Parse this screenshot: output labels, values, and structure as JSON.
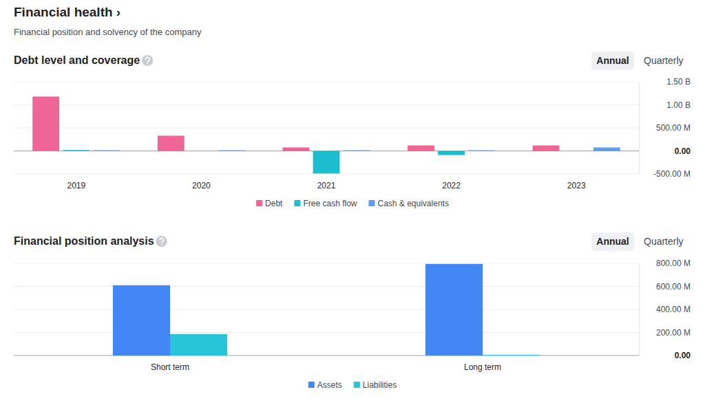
{
  "header": {
    "title": "Financial health ›",
    "subtitle": "Financial position and solvency of the company"
  },
  "controls": [
    [
      "Annual",
      "Quarterly"
    ],
    [
      "Annual",
      "Quarterly"
    ]
  ],
  "chart_data": [
    {
      "type": "bar",
      "title": "Debt level and coverage",
      "categories": [
        "2019",
        "2020",
        "2021",
        "2022",
        "2023"
      ],
      "series": [
        {
          "name": "Debt",
          "color": "#ef6595",
          "values": [
            1180,
            330,
            75,
            120,
            120
          ]
        },
        {
          "name": "Free cash flow",
          "color": "#1bbdcf",
          "values": [
            20,
            null,
            -490,
            -90,
            null
          ]
        },
        {
          "name": "Cash & equivalents",
          "color": "#5e9ef2",
          "values": [
            15,
            15,
            15,
            15,
            75
          ]
        }
      ],
      "ylim": [
        -500,
        1500
      ],
      "yticks": [
        {
          "value": -500,
          "label": "-500.00 M"
        },
        {
          "value": 0,
          "label": "0.00"
        },
        {
          "value": 500,
          "label": "500.00 M"
        },
        {
          "value": 1000,
          "label": "1.00 B"
        },
        {
          "value": 1500,
          "label": "1.50 B"
        }
      ],
      "grid": true,
      "legend": "bottom"
    },
    {
      "type": "bar",
      "title": "Financial position analysis",
      "categories": [
        "Short term",
        "Long term"
      ],
      "series": [
        {
          "name": "Assets",
          "color": "#4387f5",
          "values": [
            610,
            795
          ]
        },
        {
          "name": "Liabilities",
          "color": "#28c5d9",
          "values": [
            185,
            5
          ]
        }
      ],
      "ylim": [
        0,
        800
      ],
      "yticks": [
        {
          "value": 0,
          "label": "0.00"
        },
        {
          "value": 200,
          "label": "200.00 M"
        },
        {
          "value": 400,
          "label": "400.00 M"
        },
        {
          "value": 600,
          "label": "600.00 M"
        },
        {
          "value": 800,
          "label": "800.00 M"
        }
      ],
      "grid": true,
      "legend": "bottom"
    }
  ]
}
